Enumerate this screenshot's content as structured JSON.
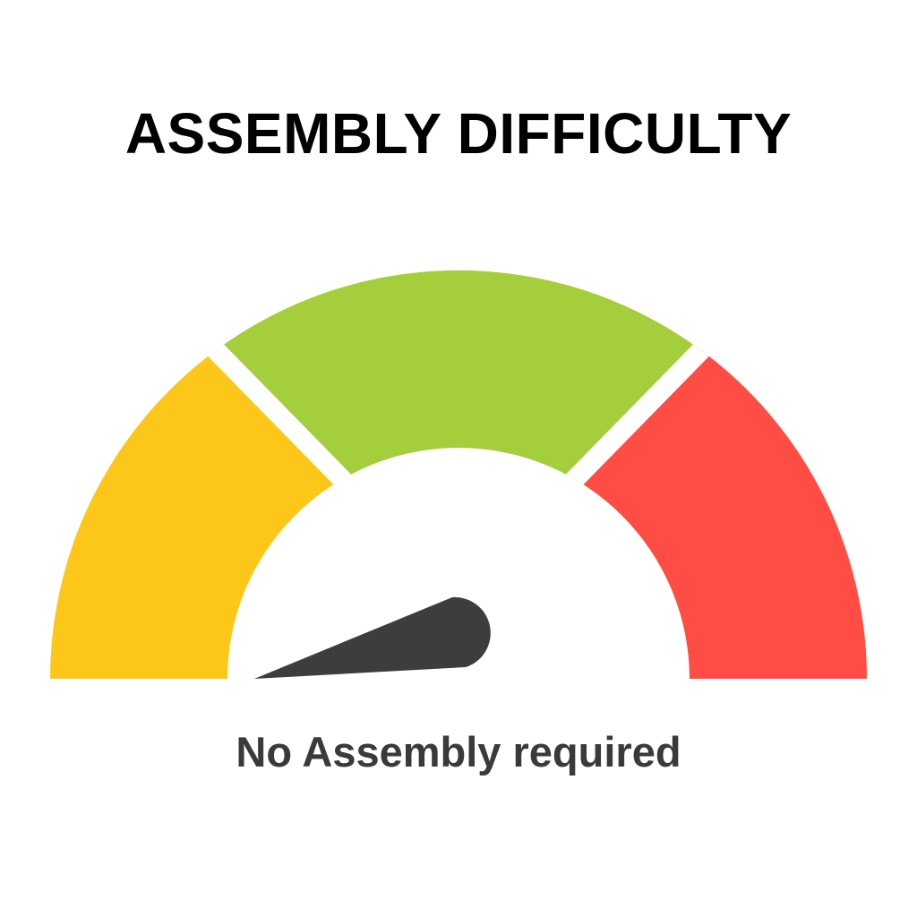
{
  "title": "ASSEMBLY DIFFICULTY",
  "caption": "No Assembly required",
  "gauge": {
    "segments": [
      {
        "color": "#FDC71A"
      },
      {
        "color": "#A5CE3C"
      },
      {
        "color": "#FF4C45"
      }
    ],
    "needle_color": "#3D3D3F",
    "needle_level_percent": 5
  }
}
